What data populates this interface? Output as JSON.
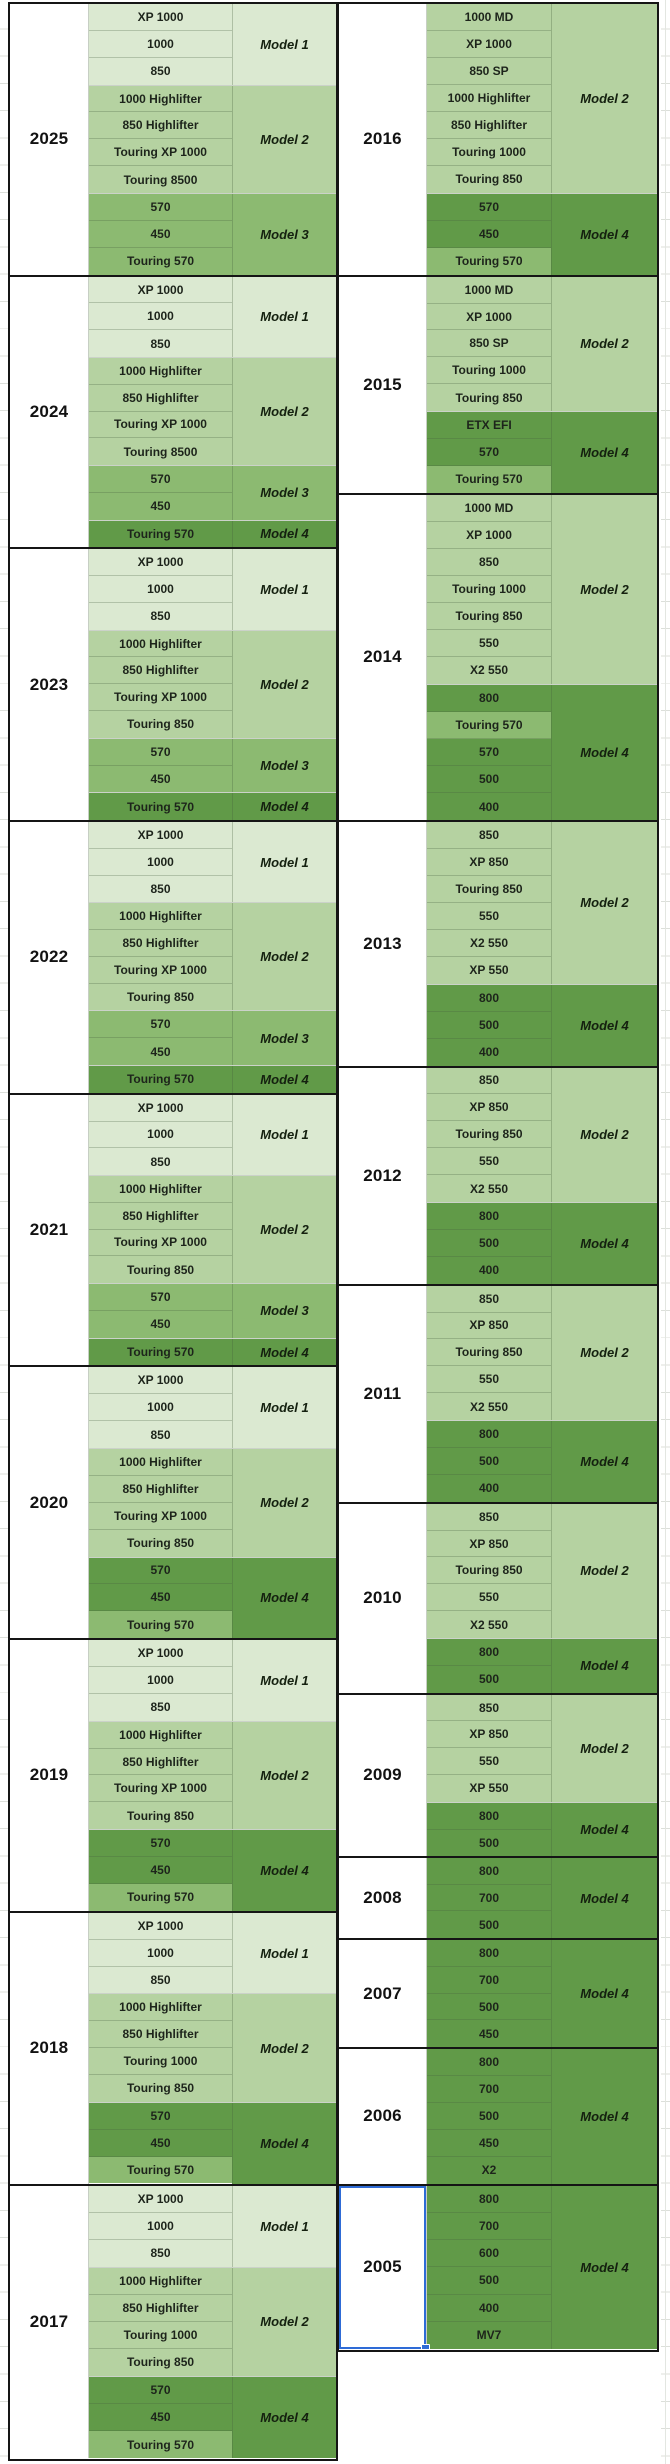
{
  "palette": {
    "model1": "#dbe9d1",
    "model2": "#b5d2a1",
    "model3": "#8cba71",
    "model4": "#619a48",
    "block_border": "#151515",
    "selection_blue": "#2e6bd6"
  },
  "selection": {
    "year": "2005"
  },
  "tables": [
    {
      "side": "left",
      "years": [
        {
          "year": "2025",
          "groups": [
            {
              "label": "Model 1",
              "shade": "model1",
              "rows": [
                "XP 1000",
                "1000",
                "850"
              ]
            },
            {
              "label": "Model 2",
              "shade": "model2",
              "rows": [
                "1000 Highlifter",
                "850 Highlifter",
                "Touring XP 1000",
                "Touring 8500"
              ]
            },
            {
              "label": "Model 3",
              "shade": "model3",
              "rows": [
                "570",
                "450",
                "Touring 570"
              ]
            }
          ]
        },
        {
          "year": "2024",
          "groups": [
            {
              "label": "Model 1",
              "shade": "model1",
              "rows": [
                "XP 1000",
                "1000",
                "850"
              ]
            },
            {
              "label": "Model 2",
              "shade": "model2",
              "rows": [
                "1000 Highlifter",
                "850 Highlifter",
                "Touring XP 1000",
                "Touring 8500"
              ]
            },
            {
              "label": "Model 3",
              "shade": "model3",
              "rows": [
                "570",
                "450"
              ]
            },
            {
              "label": "Model 4",
              "shade": "model4",
              "rows": [
                "Touring 570"
              ]
            }
          ]
        },
        {
          "year": "2023",
          "groups": [
            {
              "label": "Model 1",
              "shade": "model1",
              "rows": [
                "XP 1000",
                "1000",
                "850"
              ]
            },
            {
              "label": "Model 2",
              "shade": "model2",
              "rows": [
                "1000 Highlifter",
                "850 Highlifter",
                "Touring XP 1000",
                "Touring 850"
              ]
            },
            {
              "label": "Model 3",
              "shade": "model3",
              "rows": [
                "570",
                "450"
              ]
            },
            {
              "label": "Model 4",
              "shade": "model4",
              "rows": [
                "Touring 570"
              ]
            }
          ]
        },
        {
          "year": "2022",
          "groups": [
            {
              "label": "Model 1",
              "shade": "model1",
              "rows": [
                "XP 1000",
                "1000",
                "850"
              ]
            },
            {
              "label": "Model 2",
              "shade": "model2",
              "rows": [
                "1000 Highlifter",
                "850 Highlifter",
                "Touring XP 1000",
                "Touring 850"
              ]
            },
            {
              "label": "Model 3",
              "shade": "model3",
              "rows": [
                "570",
                "450"
              ]
            },
            {
              "label": "Model 4",
              "shade": "model4",
              "rows": [
                "Touring 570"
              ]
            }
          ]
        },
        {
          "year": "2021",
          "groups": [
            {
              "label": "Model 1",
              "shade": "model1",
              "rows": [
                "XP 1000",
                "1000",
                "850"
              ]
            },
            {
              "label": "Model 2",
              "shade": "model2",
              "rows": [
                "1000 Highlifter",
                "850 Highlifter",
                "Touring XP 1000",
                "Touring 850"
              ]
            },
            {
              "label": "Model 3",
              "shade": "model3",
              "rows": [
                "570",
                "450"
              ]
            },
            {
              "label": "Model 4",
              "shade": "model4",
              "rows": [
                "Touring 570"
              ]
            }
          ]
        },
        {
          "year": "2020",
          "groups": [
            {
              "label": "Model 1",
              "shade": "model1",
              "rows": [
                "XP 1000",
                "1000",
                "850"
              ]
            },
            {
              "label": "Model 2",
              "shade": "model2",
              "rows": [
                "1000 Highlifter",
                "850 Highlifter",
                "Touring XP 1000",
                "Touring 850"
              ]
            },
            {
              "label": "Model 4",
              "shade": "model4",
              "rows": [
                "570",
                "450",
                {
                  "t": "Touring 570",
                  "shade": "model3"
                }
              ]
            }
          ]
        },
        {
          "year": "2019",
          "groups": [
            {
              "label": "Model 1",
              "shade": "model1",
              "rows": [
                "XP 1000",
                "1000",
                "850"
              ]
            },
            {
              "label": "Model 2",
              "shade": "model2",
              "rows": [
                "1000 Highlifter",
                "850 Highlifter",
                "Touring XP 1000",
                "Touring 850"
              ]
            },
            {
              "label": "Model 4",
              "shade": "model4",
              "rows": [
                "570",
                "450",
                {
                  "t": "Touring 570",
                  "shade": "model3"
                }
              ]
            }
          ]
        },
        {
          "year": "2018",
          "groups": [
            {
              "label": "Model 1",
              "shade": "model1",
              "rows": [
                "XP 1000",
                "1000",
                "850"
              ]
            },
            {
              "label": "Model 2",
              "shade": "model2",
              "rows": [
                "1000 Highlifter",
                "850 Highlifter",
                "Touring 1000",
                "Touring 850"
              ]
            },
            {
              "label": "Model 4",
              "shade": "model4",
              "rows": [
                "570",
                "450",
                {
                  "t": "Touring 570",
                  "shade": "model3"
                }
              ]
            }
          ]
        },
        {
          "year": "2017",
          "groups": [
            {
              "label": "Model 1",
              "shade": "model1",
              "rows": [
                "XP 1000",
                "1000",
                "850"
              ]
            },
            {
              "label": "Model 2",
              "shade": "model2",
              "rows": [
                "1000 Highlifter",
                "850 Highlifter",
                "Touring 1000",
                "Touring 850"
              ]
            },
            {
              "label": "Model 4",
              "shade": "model4",
              "rows": [
                "570",
                "450",
                {
                  "t": "Touring 570",
                  "shade": "model3"
                }
              ]
            }
          ]
        }
      ]
    },
    {
      "side": "right",
      "years": [
        {
          "year": "2016",
          "groups": [
            {
              "label": "Model 2",
              "shade": "model2",
              "rows": [
                "1000 MD",
                "XP 1000",
                "850 SP",
                "1000 Highlifter",
                "850 Highlifter",
                "Touring 1000",
                "Touring 850"
              ]
            },
            {
              "label": "Model 4",
              "shade": "model4",
              "rows": [
                "570",
                "450",
                {
                  "t": "Touring 570",
                  "shade": "model3"
                }
              ]
            }
          ]
        },
        {
          "year": "2015",
          "groups": [
            {
              "label": "Model 2",
              "shade": "model2",
              "rows": [
                "1000 MD",
                "XP 1000",
                "850 SP",
                "Touring 1000",
                "Touring 850"
              ]
            },
            {
              "label": "Model 4",
              "shade": "model4",
              "rows": [
                "ETX EFI",
                "570",
                {
                  "t": "Touring 570",
                  "shade": "model3"
                }
              ]
            }
          ]
        },
        {
          "year": "2014",
          "groups": [
            {
              "label": "Model 2",
              "shade": "model2",
              "rows": [
                "1000 MD",
                "XP 1000",
                "850",
                "Touring 1000",
                "Touring 850",
                "550",
                "X2 550"
              ]
            },
            {
              "label": "Model 4",
              "shade": "model4",
              "rows": [
                "800",
                {
                  "t": "Touring 570",
                  "shade": "model3"
                },
                "570",
                "500",
                "400"
              ]
            }
          ]
        },
        {
          "year": "2013",
          "groups": [
            {
              "label": "Model 2",
              "shade": "model2",
              "rows": [
                "850",
                "XP 850",
                "Touring 850",
                "550",
                "X2 550",
                "XP 550"
              ]
            },
            {
              "label": "Model 4",
              "shade": "model4",
              "rows": [
                "800",
                "500",
                "400"
              ]
            }
          ]
        },
        {
          "year": "2012",
          "groups": [
            {
              "label": "Model 2",
              "shade": "model2",
              "rows": [
                "850",
                "XP 850",
                "Touring 850",
                "550",
                "X2 550"
              ]
            },
            {
              "label": "Model 4",
              "shade": "model4",
              "rows": [
                "800",
                "500",
                "400"
              ]
            }
          ]
        },
        {
          "year": "2011",
          "groups": [
            {
              "label": "Model 2",
              "shade": "model2",
              "rows": [
                "850",
                "XP 850",
                "Touring 850",
                "550",
                "X2 550"
              ]
            },
            {
              "label": "Model 4",
              "shade": "model4",
              "rows": [
                "800",
                "500",
                "400"
              ]
            }
          ]
        },
        {
          "year": "2010",
          "groups": [
            {
              "label": "Model 2",
              "shade": "model2",
              "rows": [
                "850",
                "XP 850",
                "Touring 850",
                "550",
                "X2 550"
              ]
            },
            {
              "label": "Model 4",
              "shade": "model4",
              "rows": [
                "800",
                "500"
              ]
            }
          ]
        },
        {
          "year": "2009",
          "groups": [
            {
              "label": "Model 2",
              "shade": "model2",
              "rows": [
                "850",
                "XP 850",
                "550",
                "XP 550"
              ]
            },
            {
              "label": "Model 4",
              "shade": "model4",
              "rows": [
                "800",
                "500"
              ]
            }
          ]
        },
        {
          "year": "2008",
          "groups": [
            {
              "label": "Model 4",
              "shade": "model4",
              "rows": [
                "800",
                "700",
                "500"
              ]
            }
          ]
        },
        {
          "year": "2007",
          "groups": [
            {
              "label": "Model 4",
              "shade": "model4",
              "rows": [
                "800",
                "700",
                "500",
                "450"
              ]
            }
          ]
        },
        {
          "year": "2006",
          "groups": [
            {
              "label": "Model 4",
              "shade": "model4",
              "rows": [
                "800",
                "700",
                "500",
                "450",
                "X2"
              ]
            }
          ]
        },
        {
          "year": "2005",
          "groups": [
            {
              "label": "Model 4",
              "shade": "model4",
              "rows": [
                "800",
                "700",
                "600",
                "500",
                "400",
                "MV7"
              ]
            }
          ]
        }
      ]
    }
  ]
}
